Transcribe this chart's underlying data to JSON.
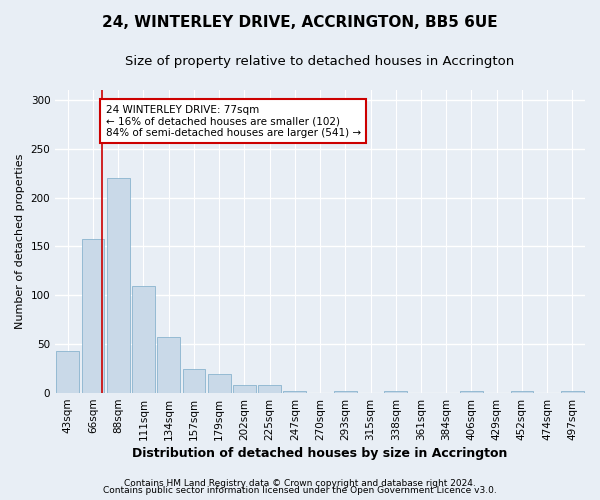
{
  "title1": "24, WINTERLEY DRIVE, ACCRINGTON, BB5 6UE",
  "title2": "Size of property relative to detached houses in Accrington",
  "xlabel": "Distribution of detached houses by size in Accrington",
  "ylabel": "Number of detached properties",
  "bin_labels": [
    "43sqm",
    "66sqm",
    "88sqm",
    "111sqm",
    "134sqm",
    "157sqm",
    "179sqm",
    "202sqm",
    "225sqm",
    "247sqm",
    "270sqm",
    "293sqm",
    "315sqm",
    "338sqm",
    "361sqm",
    "384sqm",
    "406sqm",
    "429sqm",
    "452sqm",
    "474sqm",
    "497sqm"
  ],
  "bar_heights": [
    43,
    158,
    220,
    110,
    57,
    25,
    20,
    8,
    8,
    2,
    0,
    2,
    0,
    2,
    0,
    0,
    2,
    0,
    2,
    0,
    2
  ],
  "bar_color": "#c9d9e8",
  "bar_edge_color": "#7aaac8",
  "property_line_x": 1.35,
  "property_line_color": "#cc0000",
  "annotation_text": "24 WINTERLEY DRIVE: 77sqm\n← 16% of detached houses are smaller (102)\n84% of semi-detached houses are larger (541) →",
  "annotation_box_color": "#ffffff",
  "annotation_box_edge": "#cc0000",
  "ylim": [
    0,
    310
  ],
  "yticks": [
    0,
    50,
    100,
    150,
    200,
    250,
    300
  ],
  "footnote1": "Contains HM Land Registry data © Crown copyright and database right 2024.",
  "footnote2": "Contains public sector information licensed under the Open Government Licence v3.0.",
  "bg_color": "#e8eef5",
  "plot_bg_color": "#e8eef5",
  "grid_color": "#ffffff",
  "title1_fontsize": 11,
  "title2_fontsize": 9.5,
  "xlabel_fontsize": 9,
  "ylabel_fontsize": 8,
  "tick_fontsize": 7.5,
  "annotation_fontsize": 7.5,
  "footnote_fontsize": 6.5
}
